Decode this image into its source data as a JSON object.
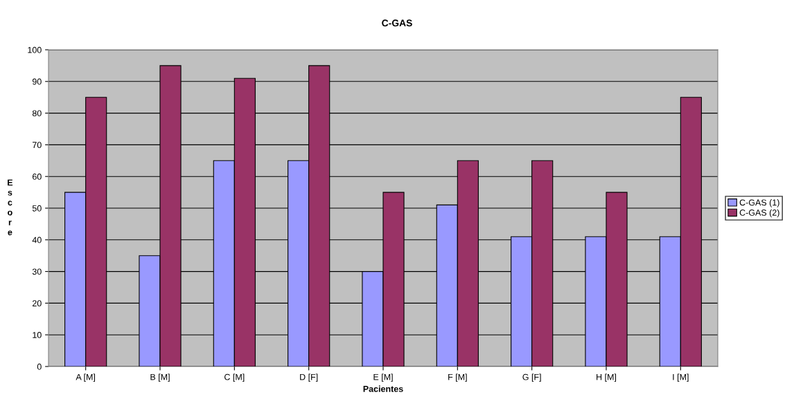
{
  "chart_data": {
    "type": "bar",
    "title": "C-GAS",
    "xlabel": "Pacientes",
    "ylabel": "Escore",
    "categories": [
      "A [M]",
      "B [M]",
      "C [M]",
      "D [F]",
      "E [M]",
      "F [M]",
      "G [F]",
      "H [M]",
      "I [M]"
    ],
    "series": [
      {
        "name": "C-GAS (1)",
        "color": "#9999ff",
        "values": [
          55,
          35,
          65,
          65,
          30,
          51,
          41,
          41,
          41
        ]
      },
      {
        "name": "C-GAS (2)",
        "color": "#993366",
        "values": [
          85,
          95,
          91,
          95,
          55,
          65,
          65,
          55,
          85
        ]
      }
    ],
    "ylim": [
      0,
      100
    ],
    "yticks": [
      0,
      10,
      20,
      30,
      40,
      50,
      60,
      70,
      80,
      90,
      100
    ],
    "grid": "y",
    "legend": "right"
  }
}
